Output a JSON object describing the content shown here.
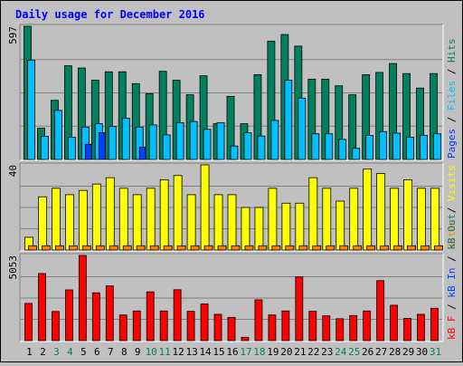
{
  "title": "Daily usage for December 2016",
  "colors": {
    "background": "#c0c0c0",
    "title": "#0000ff",
    "hits": "#00805c",
    "files": "#00c0ff",
    "pages": "#0040ff",
    "visits": "#ffff00",
    "sites": "#ff8000",
    "kb_out": "#00805c",
    "kb_in": "#0040ff",
    "kb_f": "#ff0000",
    "weekend_label": "#00805c",
    "weekday_label": "#000000"
  },
  "chart_data": [
    {
      "type": "bar",
      "name": "hits-files-pages",
      "categories": [
        "1",
        "2",
        "3",
        "4",
        "5",
        "6",
        "7",
        "8",
        "9",
        "10",
        "11",
        "12",
        "13",
        "14",
        "15",
        "16",
        "17",
        "18",
        "19",
        "20",
        "21",
        "22",
        "23",
        "24",
        "25",
        "26",
        "27",
        "28",
        "29",
        "30",
        "31"
      ],
      "ymax": 597,
      "ytick_label": "597",
      "legend": [
        {
          "key": "pages",
          "label": "Pages"
        },
        {
          "key": "files",
          "label": "Files"
        },
        {
          "key": "hits",
          "label": "Hits"
        }
      ],
      "separator": " / ",
      "series": [
        {
          "key": "hits",
          "name": "Hits",
          "values": [
            597,
            140,
            265,
            420,
            410,
            355,
            393,
            393,
            340,
            295,
            395,
            355,
            290,
            375,
            160,
            283,
            160,
            380,
            530,
            560,
            508,
            360,
            360,
            330,
            290,
            380,
            390,
            430,
            385,
            320,
            385
          ]
        },
        {
          "key": "files",
          "name": "Files",
          "values": [
            445,
            104,
            220,
            100,
            145,
            160,
            148,
            185,
            145,
            155,
            110,
            165,
            170,
            135,
            165,
            60,
            120,
            105,
            175,
            355,
            275,
            115,
            115,
            90,
            50,
            108,
            125,
            118,
            100,
            108,
            115
          ]
        },
        {
          "key": "pages",
          "name": "Pages",
          "values": [
            0,
            0,
            0,
            0,
            68,
            120,
            0,
            0,
            55,
            0,
            0,
            0,
            0,
            0,
            0,
            0,
            0,
            0,
            0,
            0,
            0,
            0,
            0,
            0,
            0,
            0,
            0,
            0,
            0,
            0,
            0
          ]
        }
      ]
    },
    {
      "type": "bar",
      "name": "visits-sites",
      "categories": [
        "1",
        "2",
        "3",
        "4",
        "5",
        "6",
        "7",
        "8",
        "9",
        "10",
        "11",
        "12",
        "13",
        "14",
        "15",
        "16",
        "17",
        "18",
        "19",
        "20",
        "21",
        "22",
        "23",
        "24",
        "25",
        "26",
        "27",
        "28",
        "29",
        "30",
        "31"
      ],
      "ymax": 40,
      "ytick_label": "40",
      "legend": [
        {
          "key": "sites",
          "label": "Sites"
        },
        {
          "key": "visits",
          "label": "Visits"
        }
      ],
      "separator": " / ",
      "series": [
        {
          "key": "visits",
          "name": "Visits",
          "values": [
            6,
            25,
            29,
            26,
            28,
            31,
            34,
            29,
            26,
            29,
            33,
            35,
            26,
            40,
            26,
            26,
            20,
            20,
            29,
            22,
            22,
            34,
            29,
            23,
            29,
            38,
            36,
            29,
            33,
            29,
            29
          ]
        },
        {
          "key": "sites",
          "name": "Sites",
          "values": [
            2,
            2,
            2,
            2,
            2,
            2,
            2,
            2,
            2,
            2,
            2,
            2,
            2,
            2,
            2,
            2,
            2,
            2,
            2,
            2,
            2,
            2,
            2,
            2,
            2,
            2,
            2,
            2,
            2,
            2,
            2
          ]
        }
      ]
    },
    {
      "type": "bar",
      "name": "kbytes",
      "categories": [
        "1",
        "2",
        "3",
        "4",
        "5",
        "6",
        "7",
        "8",
        "9",
        "10",
        "11",
        "12",
        "13",
        "14",
        "15",
        "16",
        "17",
        "18",
        "19",
        "20",
        "21",
        "22",
        "23",
        "24",
        "25",
        "26",
        "27",
        "28",
        "29",
        "30",
        "31"
      ],
      "ymax": 5053,
      "ytick_label": "5053",
      "legend": [
        {
          "key": "kb_f",
          "label": "kB F"
        },
        {
          "key": "kb_in",
          "label": "kB In"
        },
        {
          "key": "kb_out",
          "label": "kB Out"
        }
      ],
      "separator": " / ",
      "series": [
        {
          "key": "kb_f",
          "name": "kB F",
          "values": [
            2210,
            3980,
            1730,
            3010,
            5053,
            2840,
            3250,
            1520,
            1760,
            2895,
            1760,
            3020,
            1740,
            2180,
            1560,
            1380,
            200,
            2420,
            1520,
            1760,
            3780,
            1740,
            1470,
            1300,
            1490,
            1760,
            3560,
            2100,
            1320,
            1560,
            1920
          ]
        }
      ]
    }
  ],
  "day_labels": [
    {
      "text": "1",
      "weekend": false
    },
    {
      "text": "2",
      "weekend": false
    },
    {
      "text": "3",
      "weekend": true
    },
    {
      "text": "4",
      "weekend": true
    },
    {
      "text": "5",
      "weekend": false
    },
    {
      "text": "6",
      "weekend": false
    },
    {
      "text": "7",
      "weekend": false
    },
    {
      "text": "8",
      "weekend": false
    },
    {
      "text": "9",
      "weekend": false
    },
    {
      "text": "10",
      "weekend": true
    },
    {
      "text": "11",
      "weekend": true
    },
    {
      "text": "12",
      "weekend": false
    },
    {
      "text": "13",
      "weekend": false
    },
    {
      "text": "14",
      "weekend": false
    },
    {
      "text": "15",
      "weekend": false
    },
    {
      "text": "16",
      "weekend": false
    },
    {
      "text": "17",
      "weekend": true
    },
    {
      "text": "18",
      "weekend": true
    },
    {
      "text": "19",
      "weekend": false
    },
    {
      "text": "20",
      "weekend": false
    },
    {
      "text": "21",
      "weekend": false
    },
    {
      "text": "22",
      "weekend": false
    },
    {
      "text": "23",
      "weekend": false
    },
    {
      "text": "24",
      "weekend": true
    },
    {
      "text": "25",
      "weekend": true
    },
    {
      "text": "26",
      "weekend": false
    },
    {
      "text": "27",
      "weekend": false
    },
    {
      "text": "28",
      "weekend": false
    },
    {
      "text": "29",
      "weekend": false
    },
    {
      "text": "30",
      "weekend": false
    },
    {
      "text": "31",
      "weekend": true
    }
  ]
}
